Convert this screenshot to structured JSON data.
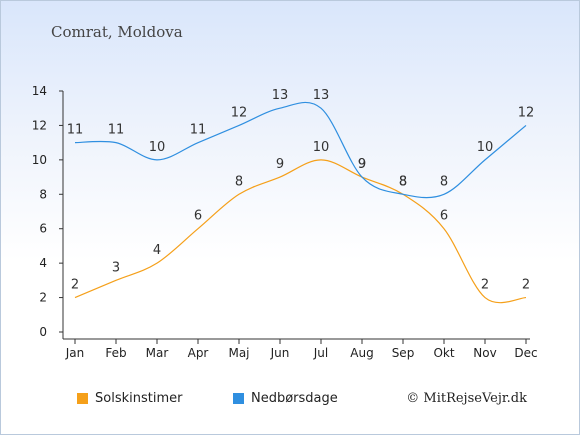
{
  "chart_data": {
    "type": "line",
    "title": "Comrat, Moldova",
    "categories": [
      "Jan",
      "Feb",
      "Mar",
      "Apr",
      "Maj",
      "Jun",
      "Jul",
      "Aug",
      "Sep",
      "Okt",
      "Nov",
      "Dec"
    ],
    "series": [
      {
        "name": "Solskinstimer",
        "color": "#f5a01a",
        "values": [
          2,
          3,
          4,
          6,
          8,
          9,
          10,
          9,
          8,
          6,
          2,
          2
        ]
      },
      {
        "name": "Nedbørsdage",
        "color": "#2f8fe0",
        "values": [
          11,
          11,
          10,
          11,
          12,
          13,
          13,
          9,
          8,
          8,
          10,
          12
        ]
      }
    ],
    "ylim": [
      0,
      14
    ],
    "yticks": [
      0,
      2,
      4,
      6,
      8,
      10,
      12,
      14
    ],
    "grid": false,
    "legend_position": "bottom-left"
  },
  "copyright": "© MitRejseVejr.dk"
}
